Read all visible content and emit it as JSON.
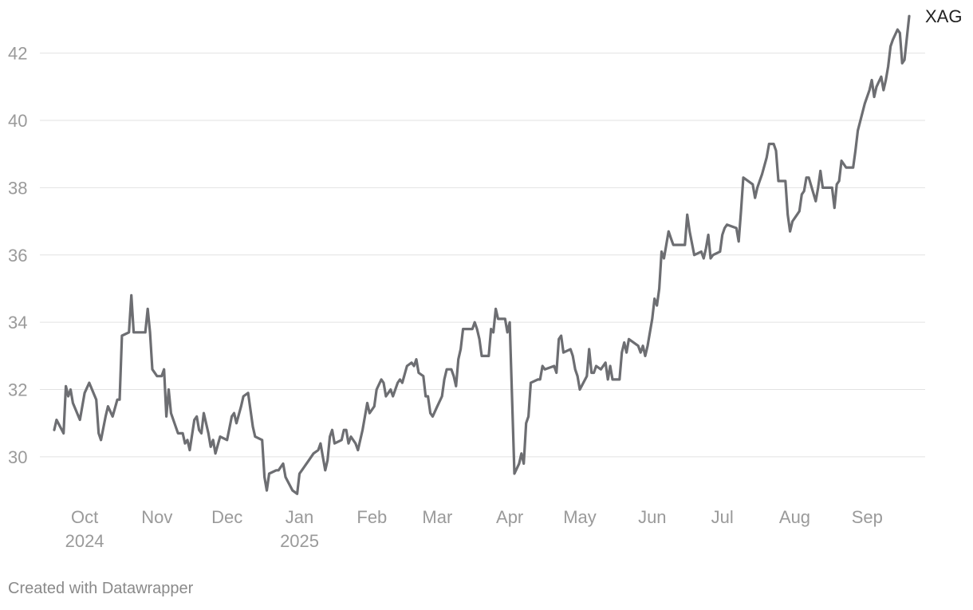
{
  "chart_data": {
    "type": "line",
    "x": [
      0,
      1,
      4,
      5,
      6,
      7,
      8,
      11,
      13,
      15,
      18,
      19,
      20,
      22,
      23,
      25,
      27,
      28,
      29,
      32,
      33,
      34,
      39,
      40,
      41,
      42,
      44,
      46,
      47,
      48,
      49,
      50,
      53,
      55,
      56,
      57,
      58,
      60,
      61,
      62,
      63,
      64,
      66,
      67,
      68,
      69,
      71,
      74,
      76,
      77,
      78,
      80,
      81,
      83,
      85,
      86,
      89,
      90,
      91,
      92,
      95,
      96,
      98,
      99,
      102,
      104,
      105,
      106,
      109,
      111,
      113,
      114,
      115,
      116,
      117,
      118,
      119,
      120,
      123,
      124,
      125,
      126,
      127,
      129,
      130,
      132,
      134,
      135,
      137,
      138,
      140,
      141,
      142,
      143,
      144,
      145,
      147,
      148,
      149,
      151,
      153,
      154,
      155,
      156,
      158,
      159,
      160,
      161,
      162,
      164,
      166,
      167,
      168,
      170,
      171,
      172,
      173,
      174,
      175,
      178,
      179,
      180,
      181,
      182,
      183,
      186,
      187,
      188,
      189,
      190,
      193,
      194,
      195,
      197,
      199,
      200,
      201,
      202,
      203,
      204,
      207,
      208,
      209,
      210,
      214,
      215,
      216,
      217,
      218,
      221,
      222,
      223,
      224,
      225,
      228,
      229,
      230,
      231,
      232,
      234,
      236,
      237,
      238,
      239,
      242,
      243,
      244,
      245,
      246,
      250,
      251,
      252,
      253,
      254,
      256,
      257,
      258,
      259,
      260,
      261,
      262,
      263,
      264,
      265,
      267,
      270,
      271,
      272,
      274,
      277,
      278,
      279,
      280,
      281,
      282,
      285,
      286,
      287,
      288,
      292,
      293,
      294,
      295,
      299,
      300,
      301,
      302,
      303,
      305,
      306,
      308,
      309,
      310,
      313,
      314,
      315,
      316,
      318,
      319,
      320,
      321,
      322,
      323,
      326,
      327,
      328,
      329,
      333,
      334,
      335,
      336,
      337,
      339,
      340,
      342,
      343,
      344,
      347,
      349,
      350,
      351,
      352,
      354,
      355,
      356,
      357,
      358,
      359,
      361,
      362,
      363,
      364,
      366
    ],
    "series": [
      {
        "name": "XAG",
        "color": "#6d6e72",
        "values": [
          30.8,
          31.1,
          30.7,
          32.1,
          31.8,
          32.0,
          31.6,
          31.1,
          31.9,
          32.2,
          31.7,
          30.7,
          30.5,
          31.2,
          31.5,
          31.2,
          31.7,
          31.7,
          33.6,
          33.7,
          34.8,
          33.7,
          33.7,
          34.4,
          33.7,
          32.6,
          32.4,
          32.4,
          32.6,
          31.2,
          32.0,
          31.3,
          30.7,
          30.7,
          30.4,
          30.5,
          30.2,
          31.1,
          31.2,
          30.8,
          30.7,
          31.3,
          30.7,
          30.3,
          30.5,
          30.1,
          30.6,
          30.5,
          31.2,
          31.3,
          31.0,
          31.5,
          31.8,
          31.9,
          30.9,
          30.6,
          30.5,
          29.4,
          29.0,
          29.5,
          29.6,
          29.6,
          29.8,
          29.4,
          29.0,
          28.9,
          29.5,
          29.6,
          29.9,
          30.1,
          30.2,
          30.4,
          30.0,
          29.6,
          29.9,
          30.6,
          30.8,
          30.4,
          30.5,
          30.8,
          30.8,
          30.4,
          30.6,
          30.4,
          30.2,
          30.8,
          31.6,
          31.3,
          31.5,
          32.0,
          32.3,
          32.2,
          31.8,
          31.9,
          32.0,
          31.8,
          32.2,
          32.3,
          32.2,
          32.7,
          32.8,
          32.7,
          32.9,
          32.5,
          32.4,
          31.8,
          31.8,
          31.3,
          31.2,
          31.5,
          31.8,
          32.3,
          32.6,
          32.6,
          32.4,
          32.1,
          32.9,
          33.2,
          33.8,
          33.8,
          33.8,
          34.0,
          33.8,
          33.5,
          33.0,
          33.0,
          33.8,
          33.7,
          34.4,
          34.1,
          34.1,
          33.7,
          34.0,
          29.5,
          29.8,
          30.1,
          29.8,
          31.0,
          31.2,
          32.2,
          32.3,
          32.3,
          32.7,
          32.6,
          32.7,
          32.5,
          33.5,
          33.6,
          33.1,
          33.2,
          33.0,
          32.6,
          32.4,
          32.0,
          32.4,
          33.2,
          32.5,
          32.5,
          32.7,
          32.6,
          32.8,
          32.3,
          32.7,
          32.3,
          32.3,
          33.1,
          33.4,
          33.1,
          33.5,
          33.3,
          33.1,
          33.3,
          33.0,
          33.3,
          34.1,
          34.7,
          34.5,
          35.0,
          36.1,
          35.9,
          36.3,
          36.7,
          36.5,
          36.3,
          36.3,
          36.3,
          37.2,
          36.7,
          36.0,
          36.1,
          35.9,
          36.2,
          36.6,
          35.9,
          36.0,
          36.1,
          36.6,
          36.8,
          36.9,
          36.8,
          36.4,
          37.3,
          38.3,
          38.1,
          37.7,
          38.0,
          38.2,
          38.4,
          38.9,
          39.3,
          39.3,
          39.1,
          38.2,
          38.2,
          37.2,
          36.7,
          37.0,
          37.2,
          37.3,
          37.8,
          37.9,
          38.3,
          38.3,
          37.6,
          38.0,
          38.5,
          38.0,
          38.0,
          37.4,
          38.1,
          38.2,
          38.8,
          38.6,
          38.6,
          38.6,
          39.1,
          39.7,
          40.5,
          40.9,
          41.2,
          40.7,
          41.0,
          41.3,
          40.9,
          41.2,
          41.6,
          42.2,
          42.4,
          42.7,
          42.6,
          41.7,
          41.8,
          43.1
        ]
      }
    ],
    "xlim": [
      0,
      366
    ],
    "xticks": [
      {
        "value": 13,
        "label": "Oct 2024"
      },
      {
        "value": 44,
        "label": "Nov"
      },
      {
        "value": 74,
        "label": "Dec"
      },
      {
        "value": 105,
        "label": "Jan 2025"
      },
      {
        "value": 136,
        "label": "Feb"
      },
      {
        "value": 164,
        "label": "Mar"
      },
      {
        "value": 195,
        "label": "Apr"
      },
      {
        "value": 225,
        "label": "May"
      },
      {
        "value": 256,
        "label": "Jun"
      },
      {
        "value": 286,
        "label": "Jul"
      },
      {
        "value": 317,
        "label": "Aug"
      },
      {
        "value": 348,
        "label": "Sep"
      }
    ],
    "ylim": [
      28.6,
      43.2
    ],
    "yticks": [
      30,
      32,
      34,
      36,
      38,
      40,
      42
    ],
    "grid": true
  },
  "footer": "Created with Datawrapper"
}
